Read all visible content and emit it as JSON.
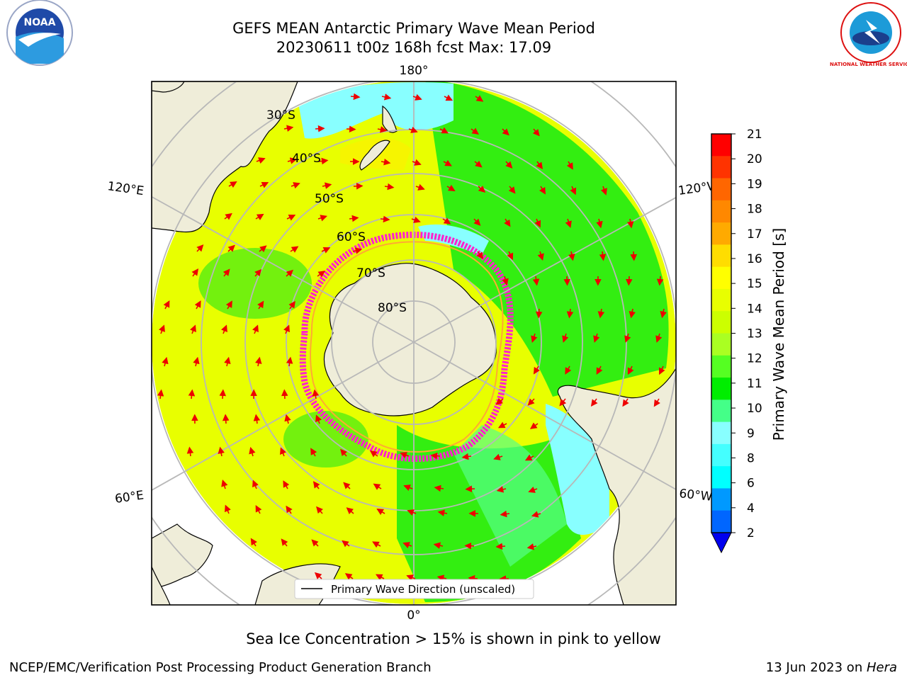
{
  "title_line1": "GEFS MEAN Antarctic Primary Wave Mean Period",
  "title_line2": "20230611 t00z 168h fcst   Max: 17.09",
  "map": {
    "projection": "south-polar-stereographic",
    "lon_labels": [
      "180°",
      "120°E",
      "120°W",
      "60°E",
      "60°W",
      "0°"
    ],
    "lat_labels": [
      "30°S",
      "40°S",
      "50°S",
      "60°S",
      "70°S",
      "80°S"
    ],
    "legend_label": "Primary Wave Direction (unscaled)",
    "ocean_colors": {
      "dominant": "#e8ff00",
      "band": "#33ee11",
      "light_green": "#55ff88",
      "cyan": "#88ffff"
    },
    "land_color": "#efedd9",
    "ice_edge_color": "#ff22cc",
    "arrow_color": "#ee0000"
  },
  "colorbar": {
    "label": "Primary Wave Mean Period [s]",
    "ticks": [
      "21",
      "20",
      "19",
      "18",
      "17",
      "16",
      "15",
      "14",
      "13",
      "12",
      "11",
      "10",
      "9",
      "8",
      "6",
      "4",
      "2"
    ],
    "colors": [
      "#ff0000",
      "#ff3300",
      "#ff6600",
      "#ff8800",
      "#ffaa00",
      "#ffdd00",
      "#ffff00",
      "#e8ff00",
      "#ccff00",
      "#aaff22",
      "#55ff22",
      "#00ee00",
      "#44ff88",
      "#88ffff",
      "#44ffff",
      "#00ffff",
      "#0099ff",
      "#0066ff"
    ],
    "extend_color": "#0000ee"
  },
  "caption": "Sea Ice Concentration > 15% is shown in pink to yellow",
  "footer_left": "NCEP/EMC/Verification Post Processing Product Generation Branch",
  "footer_right_date": "13 Jun 2023 on ",
  "footer_right_host": "Hera",
  "logos": {
    "left": "NOAA",
    "right": "NATIONAL WEATHER SERVICE"
  }
}
